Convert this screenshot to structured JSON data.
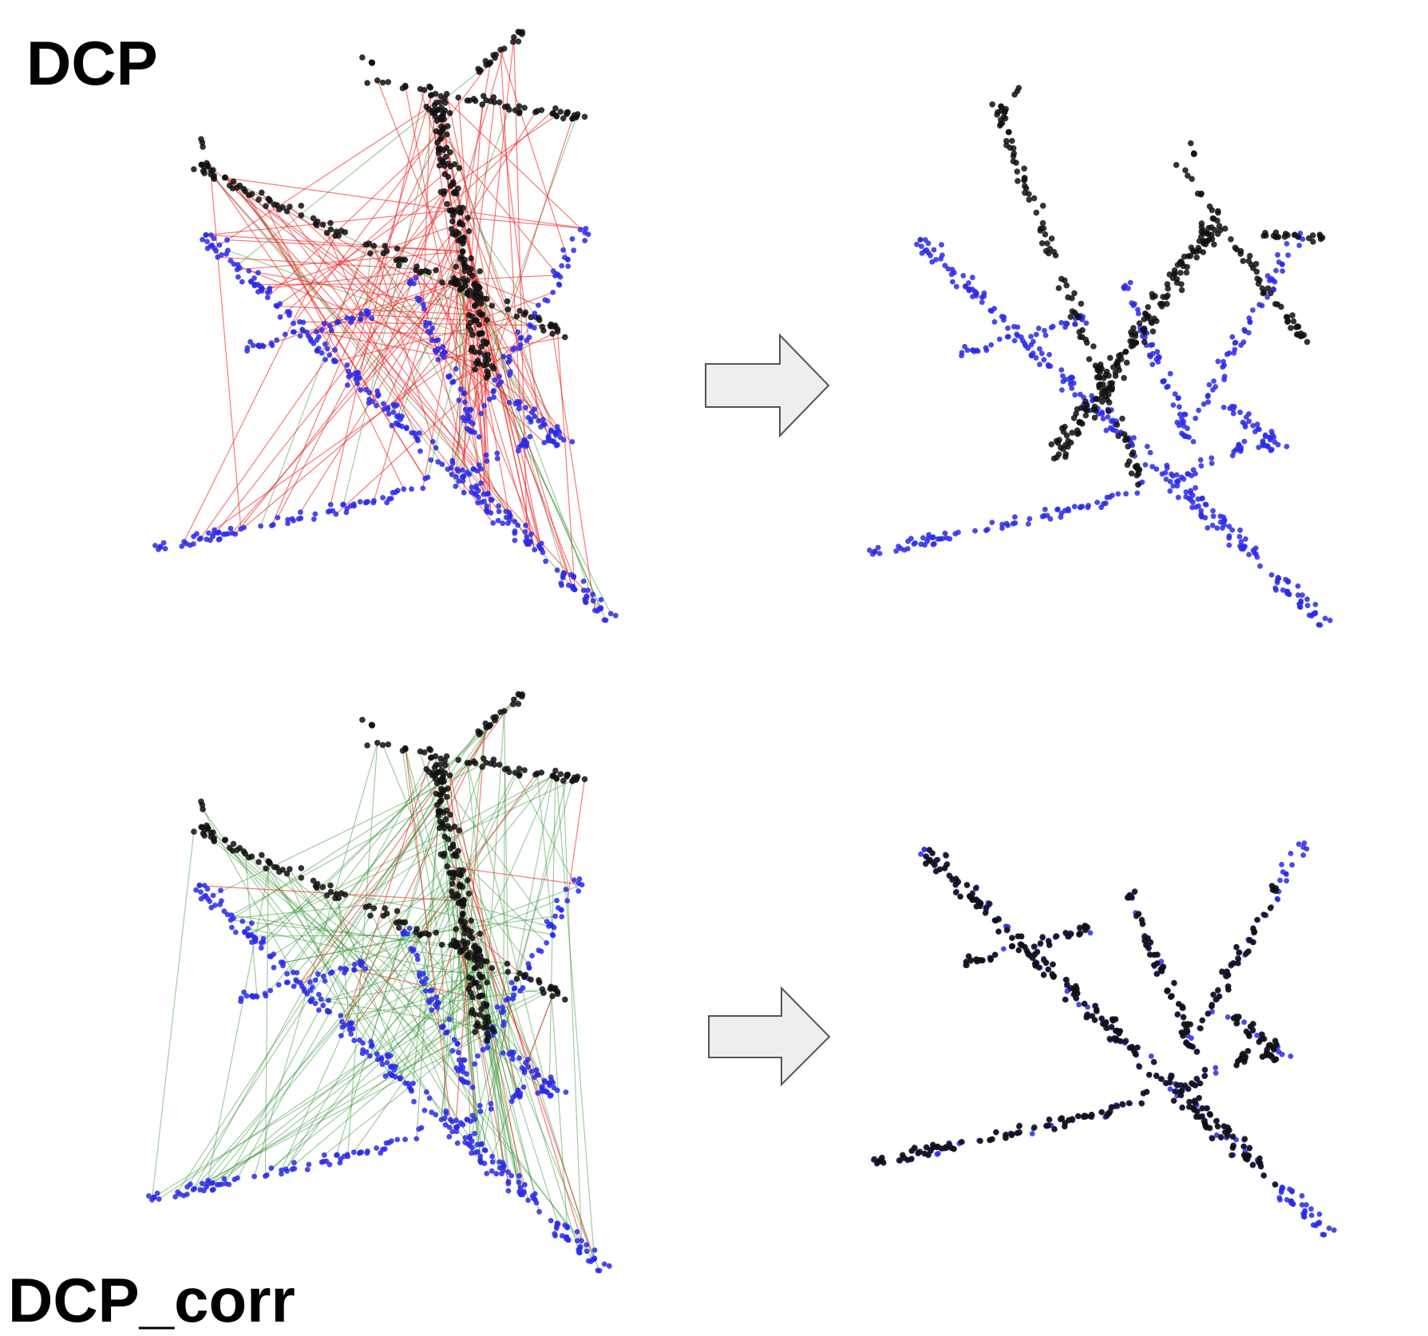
{
  "figure": {
    "row_labels": {
      "top": "DCP",
      "bottom": "DCP_corr"
    },
    "colors": {
      "source_points": "#111111",
      "target_points": "#2a2ae8",
      "correct_match": "#2e8b2e",
      "wrong_match": "#ee2222",
      "arrow_fill": "#eeeeee",
      "arrow_stroke": "#555555"
    },
    "panels": [
      {
        "id": "dcp-correspondences",
        "content": "point-cloud-correspondences",
        "correct_ratio": 0.15
      },
      {
        "id": "dcp-registered",
        "content": "registered-point-clouds",
        "alignment": "misaligned"
      },
      {
        "id": "dcp-corr-correspondences",
        "content": "point-cloud-correspondences",
        "correct_ratio": 0.85
      },
      {
        "id": "dcp-corr-registered",
        "content": "registered-point-clouds",
        "alignment": "aligned"
      }
    ],
    "icons": [
      "right-arrow-icon",
      "right-arrow-icon"
    ]
  }
}
